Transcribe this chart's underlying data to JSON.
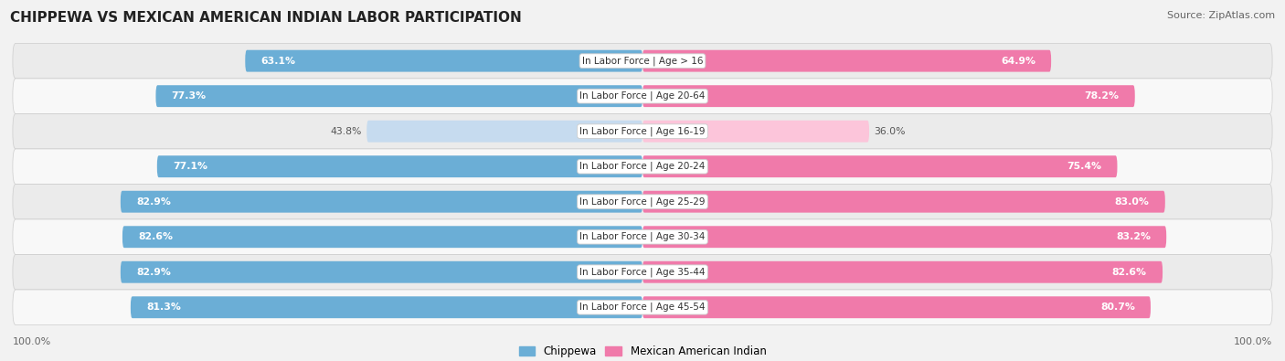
{
  "title": "CHIPPEWA VS MEXICAN AMERICAN INDIAN LABOR PARTICIPATION",
  "source": "Source: ZipAtlas.com",
  "categories": [
    "In Labor Force | Age > 16",
    "In Labor Force | Age 20-64",
    "In Labor Force | Age 16-19",
    "In Labor Force | Age 20-24",
    "In Labor Force | Age 25-29",
    "In Labor Force | Age 30-34",
    "In Labor Force | Age 35-44",
    "In Labor Force | Age 45-54"
  ],
  "chippewa_values": [
    63.1,
    77.3,
    43.8,
    77.1,
    82.9,
    82.6,
    82.9,
    81.3
  ],
  "mexican_values": [
    64.9,
    78.2,
    36.0,
    75.4,
    83.0,
    83.2,
    82.6,
    80.7
  ],
  "chippewa_color": "#6baed6",
  "chippewa_color_light": "#c6dbef",
  "mexican_color": "#f07aaa",
  "mexican_color_light": "#fcc5da",
  "row_bg_even": "#ebebeb",
  "row_bg_odd": "#f8f8f8",
  "max_value": 100.0,
  "bar_height": 0.62,
  "background_color": "#f2f2f2",
  "threshold_light": 55
}
